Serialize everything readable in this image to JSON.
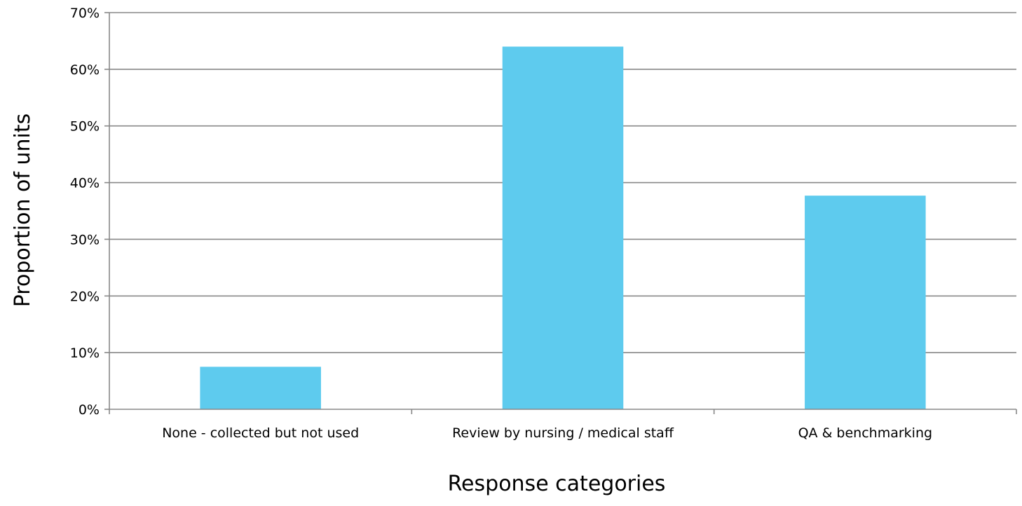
{
  "chart_data": {
    "type": "bar",
    "title": "",
    "xlabel": "Response categories",
    "ylabel": "Proportion of units",
    "categories": [
      "None - collected but not used",
      "Review by nursing / medical staff",
      "QA & benchmarking"
    ],
    "values": [
      7.5,
      64,
      37.7
    ],
    "ylim": [
      0,
      70
    ],
    "yticks": [
      0,
      10,
      20,
      30,
      40,
      50,
      60,
      70
    ],
    "ytick_labels": [
      "0%",
      "10%",
      "20%",
      "30%",
      "40%",
      "50%",
      "60%",
      "70%"
    ],
    "grid": true,
    "legend": "none",
    "colors": {
      "bar": "#5ECBEE",
      "grid": "#888888",
      "axis": "#888888"
    }
  }
}
